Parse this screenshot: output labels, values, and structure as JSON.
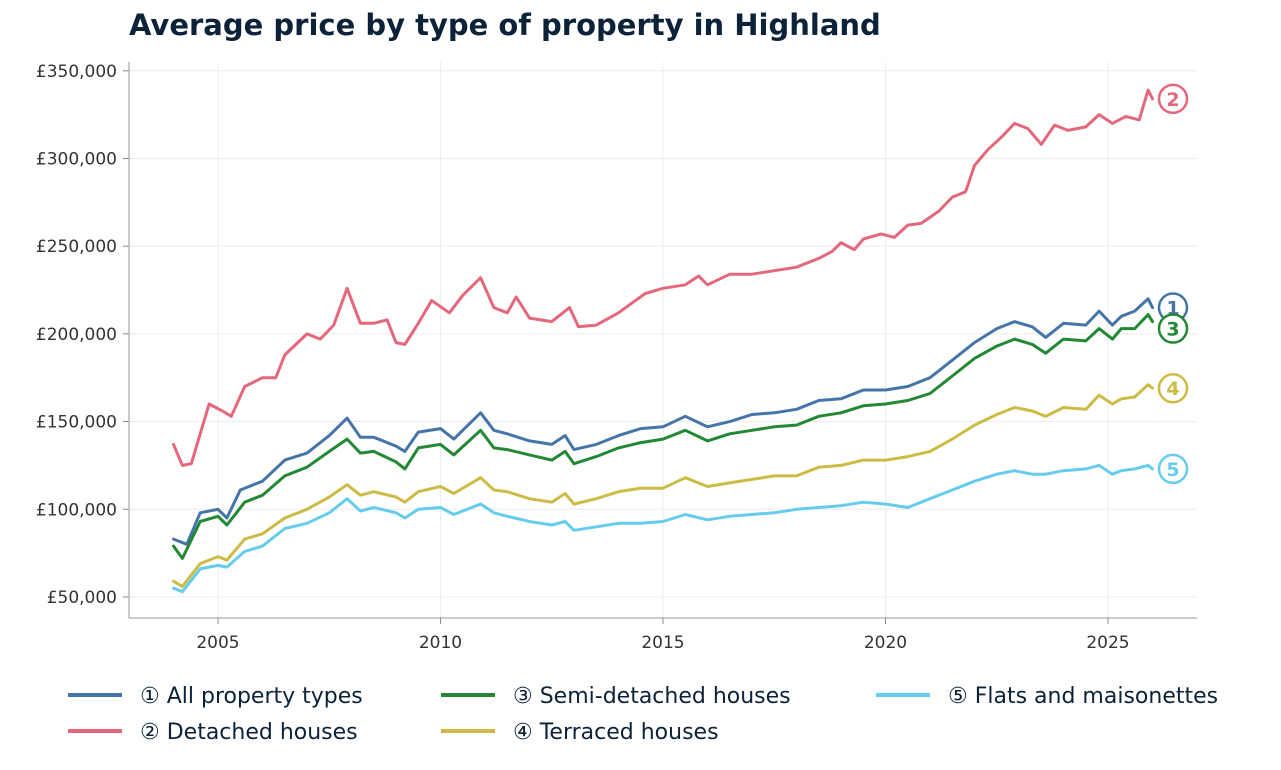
{
  "title": "Average price by type of property in Highland",
  "chart_data": {
    "type": "line",
    "title": "Average price by type of property in Highland",
    "xlabel": "",
    "ylabel": "",
    "x_range": [
      2003.0,
      2027.0
    ],
    "ylim": [
      38000,
      355000
    ],
    "x_ticks": [
      2005,
      2010,
      2015,
      2020,
      2025
    ],
    "x_tick_labels": [
      "2005",
      "2010",
      "2015",
      "2020",
      "2025"
    ],
    "y_ticks": [
      50000,
      100000,
      150000,
      200000,
      250000,
      300000,
      350000
    ],
    "y_tick_labels": [
      "£50,000",
      "£100,000",
      "£150,000",
      "£200,000",
      "£250,000",
      "£300,000",
      "£350,000"
    ],
    "grid": true,
    "legend_position": "bottom",
    "series": [
      {
        "name": "① All property types",
        "marker": "1",
        "color": "#4575a8",
        "points": [
          [
            2004.0,
            83000
          ],
          [
            2004.3,
            80000
          ],
          [
            2004.6,
            98000
          ],
          [
            2005.0,
            100000
          ],
          [
            2005.2,
            95000
          ],
          [
            2005.5,
            111000
          ],
          [
            2006.0,
            116000
          ],
          [
            2006.5,
            128000
          ],
          [
            2007.0,
            132000
          ],
          [
            2007.5,
            142000
          ],
          [
            2007.9,
            152000
          ],
          [
            2008.2,
            141000
          ],
          [
            2008.5,
            141000
          ],
          [
            2009.0,
            136000
          ],
          [
            2009.2,
            133000
          ],
          [
            2009.5,
            144000
          ],
          [
            2010.0,
            146000
          ],
          [
            2010.3,
            140000
          ],
          [
            2010.9,
            155000
          ],
          [
            2011.2,
            145000
          ],
          [
            2011.5,
            143000
          ],
          [
            2012.0,
            139000
          ],
          [
            2012.5,
            137000
          ],
          [
            2012.8,
            142000
          ],
          [
            2013.0,
            134000
          ],
          [
            2013.5,
            137000
          ],
          [
            2014.0,
            142000
          ],
          [
            2014.5,
            146000
          ],
          [
            2015.0,
            147000
          ],
          [
            2015.5,
            153000
          ],
          [
            2016.0,
            147000
          ],
          [
            2016.5,
            150000
          ],
          [
            2017.0,
            154000
          ],
          [
            2017.5,
            155000
          ],
          [
            2018.0,
            157000
          ],
          [
            2018.5,
            162000
          ],
          [
            2019.0,
            163000
          ],
          [
            2019.5,
            168000
          ],
          [
            2020.0,
            168000
          ],
          [
            2020.5,
            170000
          ],
          [
            2021.0,
            175000
          ],
          [
            2021.5,
            185000
          ],
          [
            2022.0,
            195000
          ],
          [
            2022.5,
            203000
          ],
          [
            2022.9,
            207000
          ],
          [
            2023.3,
            204000
          ],
          [
            2023.6,
            198000
          ],
          [
            2024.0,
            206000
          ],
          [
            2024.5,
            205000
          ],
          [
            2024.8,
            213000
          ],
          [
            2025.1,
            205000
          ],
          [
            2025.3,
            210000
          ],
          [
            2025.6,
            213000
          ],
          [
            2025.9,
            220000
          ],
          [
            2026.0,
            215000
          ]
        ]
      },
      {
        "name": "② Detached houses",
        "marker": "2",
        "color": "#e5677b",
        "points": [
          [
            2004.0,
            137000
          ],
          [
            2004.2,
            125000
          ],
          [
            2004.4,
            126000
          ],
          [
            2004.8,
            160000
          ],
          [
            2005.1,
            156000
          ],
          [
            2005.3,
            153000
          ],
          [
            2005.6,
            170000
          ],
          [
            2006.0,
            175000
          ],
          [
            2006.3,
            175000
          ],
          [
            2006.5,
            188000
          ],
          [
            2007.0,
            200000
          ],
          [
            2007.3,
            197000
          ],
          [
            2007.6,
            205000
          ],
          [
            2007.9,
            226000
          ],
          [
            2008.2,
            206000
          ],
          [
            2008.5,
            206000
          ],
          [
            2008.8,
            208000
          ],
          [
            2009.0,
            195000
          ],
          [
            2009.2,
            194000
          ],
          [
            2009.5,
            206000
          ],
          [
            2009.8,
            219000
          ],
          [
            2010.2,
            212000
          ],
          [
            2010.5,
            222000
          ],
          [
            2010.9,
            232000
          ],
          [
            2011.2,
            215000
          ],
          [
            2011.5,
            212000
          ],
          [
            2011.7,
            221000
          ],
          [
            2012.0,
            209000
          ],
          [
            2012.5,
            207000
          ],
          [
            2012.9,
            215000
          ],
          [
            2013.1,
            204000
          ],
          [
            2013.5,
            205000
          ],
          [
            2014.0,
            212000
          ],
          [
            2014.6,
            223000
          ],
          [
            2015.0,
            226000
          ],
          [
            2015.5,
            228000
          ],
          [
            2015.8,
            233000
          ],
          [
            2016.0,
            228000
          ],
          [
            2016.5,
            234000
          ],
          [
            2017.0,
            234000
          ],
          [
            2017.5,
            236000
          ],
          [
            2018.0,
            238000
          ],
          [
            2018.5,
            243000
          ],
          [
            2018.8,
            247000
          ],
          [
            2019.0,
            252000
          ],
          [
            2019.3,
            248000
          ],
          [
            2019.5,
            254000
          ],
          [
            2019.9,
            257000
          ],
          [
            2020.2,
            255000
          ],
          [
            2020.5,
            262000
          ],
          [
            2020.8,
            263000
          ],
          [
            2021.2,
            270000
          ],
          [
            2021.5,
            278000
          ],
          [
            2021.8,
            281000
          ],
          [
            2022.0,
            296000
          ],
          [
            2022.3,
            305000
          ],
          [
            2022.6,
            312000
          ],
          [
            2022.9,
            320000
          ],
          [
            2023.2,
            317000
          ],
          [
            2023.5,
            308000
          ],
          [
            2023.8,
            319000
          ],
          [
            2024.1,
            316000
          ],
          [
            2024.5,
            318000
          ],
          [
            2024.8,
            325000
          ],
          [
            2025.1,
            320000
          ],
          [
            2025.4,
            324000
          ],
          [
            2025.7,
            322000
          ],
          [
            2025.9,
            339000
          ],
          [
            2026.0,
            334000
          ]
        ]
      },
      {
        "name": "③ Semi-detached houses",
        "marker": "3",
        "color": "#228833",
        "points": [
          [
            2004.0,
            79000
          ],
          [
            2004.2,
            72000
          ],
          [
            2004.6,
            93000
          ],
          [
            2005.0,
            96000
          ],
          [
            2005.2,
            91000
          ],
          [
            2005.6,
            104000
          ],
          [
            2006.0,
            108000
          ],
          [
            2006.5,
            119000
          ],
          [
            2007.0,
            124000
          ],
          [
            2007.5,
            133000
          ],
          [
            2007.9,
            140000
          ],
          [
            2008.2,
            132000
          ],
          [
            2008.5,
            133000
          ],
          [
            2009.0,
            127000
          ],
          [
            2009.2,
            123000
          ],
          [
            2009.5,
            135000
          ],
          [
            2010.0,
            137000
          ],
          [
            2010.3,
            131000
          ],
          [
            2010.9,
            145000
          ],
          [
            2011.2,
            135000
          ],
          [
            2011.5,
            134000
          ],
          [
            2012.0,
            131000
          ],
          [
            2012.5,
            128000
          ],
          [
            2012.8,
            133000
          ],
          [
            2013.0,
            126000
          ],
          [
            2013.5,
            130000
          ],
          [
            2014.0,
            135000
          ],
          [
            2014.5,
            138000
          ],
          [
            2015.0,
            140000
          ],
          [
            2015.5,
            145000
          ],
          [
            2016.0,
            139000
          ],
          [
            2016.5,
            143000
          ],
          [
            2017.0,
            145000
          ],
          [
            2017.5,
            147000
          ],
          [
            2018.0,
            148000
          ],
          [
            2018.5,
            153000
          ],
          [
            2019.0,
            155000
          ],
          [
            2019.5,
            159000
          ],
          [
            2020.0,
            160000
          ],
          [
            2020.5,
            162000
          ],
          [
            2021.0,
            166000
          ],
          [
            2021.5,
            176000
          ],
          [
            2022.0,
            186000
          ],
          [
            2022.5,
            193000
          ],
          [
            2022.9,
            197000
          ],
          [
            2023.3,
            194000
          ],
          [
            2023.6,
            189000
          ],
          [
            2024.0,
            197000
          ],
          [
            2024.5,
            196000
          ],
          [
            2024.8,
            203000
          ],
          [
            2025.1,
            197000
          ],
          [
            2025.3,
            203000
          ],
          [
            2025.6,
            203000
          ],
          [
            2025.9,
            211000
          ],
          [
            2026.0,
            207000
          ]
        ]
      },
      {
        "name": "④ Terraced houses",
        "marker": "4",
        "color": "#ccbb44",
        "points": [
          [
            2004.0,
            59000
          ],
          [
            2004.2,
            56000
          ],
          [
            2004.6,
            69000
          ],
          [
            2005.0,
            73000
          ],
          [
            2005.2,
            71000
          ],
          [
            2005.6,
            83000
          ],
          [
            2006.0,
            86000
          ],
          [
            2006.5,
            95000
          ],
          [
            2007.0,
            100000
          ],
          [
            2007.5,
            107000
          ],
          [
            2007.9,
            114000
          ],
          [
            2008.2,
            108000
          ],
          [
            2008.5,
            110000
          ],
          [
            2009.0,
            107000
          ],
          [
            2009.2,
            104000
          ],
          [
            2009.5,
            110000
          ],
          [
            2010.0,
            113000
          ],
          [
            2010.3,
            109000
          ],
          [
            2010.9,
            118000
          ],
          [
            2011.2,
            111000
          ],
          [
            2011.5,
            110000
          ],
          [
            2012.0,
            106000
          ],
          [
            2012.5,
            104000
          ],
          [
            2012.8,
            109000
          ],
          [
            2013.0,
            103000
          ],
          [
            2013.5,
            106000
          ],
          [
            2014.0,
            110000
          ],
          [
            2014.5,
            112000
          ],
          [
            2015.0,
            112000
          ],
          [
            2015.5,
            118000
          ],
          [
            2016.0,
            113000
          ],
          [
            2016.5,
            115000
          ],
          [
            2017.0,
            117000
          ],
          [
            2017.5,
            119000
          ],
          [
            2018.0,
            119000
          ],
          [
            2018.5,
            124000
          ],
          [
            2019.0,
            125000
          ],
          [
            2019.5,
            128000
          ],
          [
            2020.0,
            128000
          ],
          [
            2020.5,
            130000
          ],
          [
            2021.0,
            133000
          ],
          [
            2021.5,
            140000
          ],
          [
            2022.0,
            148000
          ],
          [
            2022.5,
            154000
          ],
          [
            2022.9,
            158000
          ],
          [
            2023.3,
            156000
          ],
          [
            2023.6,
            153000
          ],
          [
            2024.0,
            158000
          ],
          [
            2024.5,
            157000
          ],
          [
            2024.8,
            165000
          ],
          [
            2025.1,
            160000
          ],
          [
            2025.3,
            163000
          ],
          [
            2025.6,
            164000
          ],
          [
            2025.9,
            171000
          ],
          [
            2026.0,
            169000
          ]
        ]
      },
      {
        "name": "⑤ Flats and maisonettes",
        "marker": "5",
        "color": "#66ccee",
        "points": [
          [
            2004.0,
            55000
          ],
          [
            2004.2,
            53000
          ],
          [
            2004.6,
            66000
          ],
          [
            2005.0,
            68000
          ],
          [
            2005.2,
            67000
          ],
          [
            2005.6,
            76000
          ],
          [
            2006.0,
            79000
          ],
          [
            2006.5,
            89000
          ],
          [
            2007.0,
            92000
          ],
          [
            2007.5,
            98000
          ],
          [
            2007.9,
            106000
          ],
          [
            2008.2,
            99000
          ],
          [
            2008.5,
            101000
          ],
          [
            2009.0,
            98000
          ],
          [
            2009.2,
            95000
          ],
          [
            2009.5,
            100000
          ],
          [
            2010.0,
            101000
          ],
          [
            2010.3,
            97000
          ],
          [
            2010.9,
            103000
          ],
          [
            2011.2,
            98000
          ],
          [
            2011.5,
            96000
          ],
          [
            2012.0,
            93000
          ],
          [
            2012.5,
            91000
          ],
          [
            2012.8,
            93000
          ],
          [
            2013.0,
            88000
          ],
          [
            2013.5,
            90000
          ],
          [
            2014.0,
            92000
          ],
          [
            2014.5,
            92000
          ],
          [
            2015.0,
            93000
          ],
          [
            2015.5,
            97000
          ],
          [
            2016.0,
            94000
          ],
          [
            2016.5,
            96000
          ],
          [
            2017.0,
            97000
          ],
          [
            2017.5,
            98000
          ],
          [
            2018.0,
            100000
          ],
          [
            2018.5,
            101000
          ],
          [
            2019.0,
            102000
          ],
          [
            2019.5,
            104000
          ],
          [
            2020.0,
            103000
          ],
          [
            2020.5,
            101000
          ],
          [
            2021.0,
            106000
          ],
          [
            2021.5,
            111000
          ],
          [
            2022.0,
            116000
          ],
          [
            2022.5,
            120000
          ],
          [
            2022.9,
            122000
          ],
          [
            2023.3,
            120000
          ],
          [
            2023.6,
            120000
          ],
          [
            2024.0,
            122000
          ],
          [
            2024.5,
            123000
          ],
          [
            2024.8,
            125000
          ],
          [
            2025.1,
            120000
          ],
          [
            2025.3,
            122000
          ],
          [
            2025.6,
            123000
          ],
          [
            2025.9,
            125000
          ],
          [
            2026.0,
            123000
          ]
        ]
      }
    ]
  }
}
